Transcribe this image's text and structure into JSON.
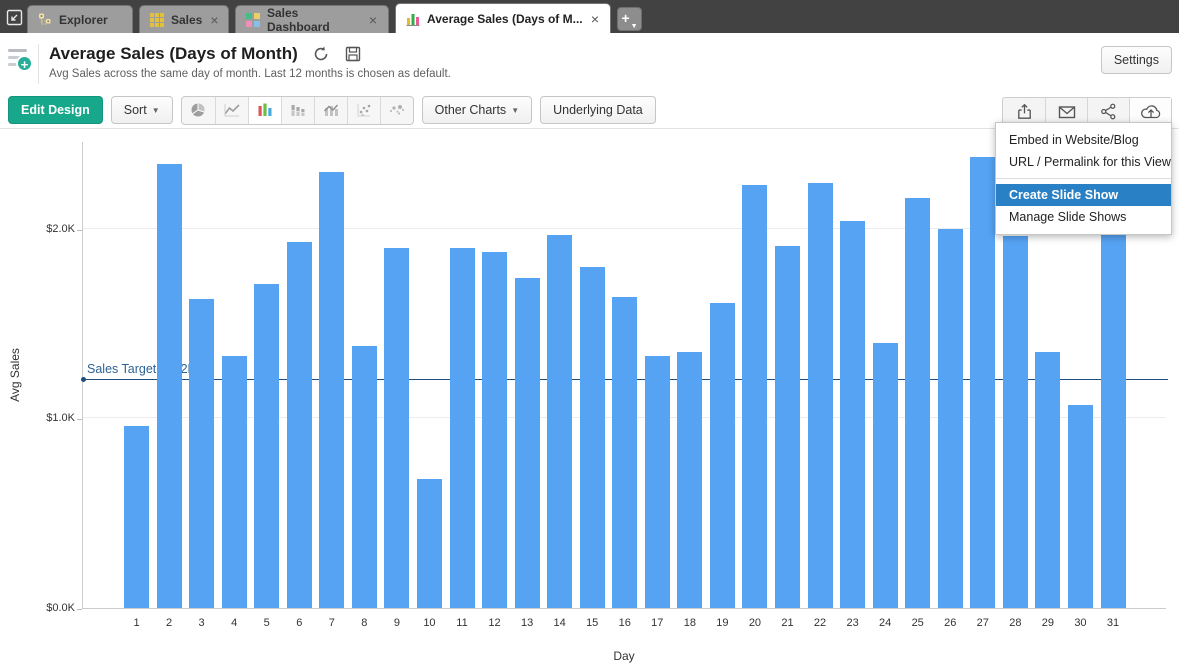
{
  "tabbar": {
    "tabs": [
      {
        "label": "Explorer",
        "icon": "explorer-tree-icon",
        "closable": false,
        "active": false
      },
      {
        "label": "Sales",
        "icon": "grid-table-icon",
        "closable": true,
        "active": false
      },
      {
        "label": "Sales Dashboard",
        "icon": "dashboard-tiles-icon",
        "closable": true,
        "active": false
      },
      {
        "label": "Average Sales (Days of M...",
        "icon": "mini-bar-chart-icon",
        "closable": true,
        "active": true
      }
    ],
    "close_glyph": "×",
    "new_tab_label": "+"
  },
  "header": {
    "title": "Average Sales (Days of Month)",
    "subtitle": "Avg Sales across the same day of month. Last 12 months is chosen as default.",
    "settings_label": "Settings",
    "icons": [
      "refresh-icon",
      "save-icon"
    ]
  },
  "toolbar": {
    "edit_design_label": "Edit Design",
    "sort_label": "Sort",
    "other_charts_label": "Other Charts",
    "underlying_data_label": "Underlying Data",
    "chart_type_icons": [
      "pie-chart-icon",
      "line-chart-icon",
      "bar-chart-icon",
      "stacked-bar-icon",
      "combo-chart-icon",
      "scatter-chart-icon",
      "bubble-chart-icon"
    ],
    "selected_chart_type": "bar-chart-icon",
    "share_icons": [
      "export-icon",
      "email-icon",
      "share-icon",
      "publish-cloud-icon"
    ]
  },
  "share_menu": {
    "items": [
      {
        "label": "Embed in Website/Blog",
        "highlighted": false
      },
      {
        "label": "URL / Permalink for this View",
        "highlighted": false
      },
      {
        "label": "Create Slide Show",
        "highlighted": true
      },
      {
        "label": "Manage Slide Shows",
        "highlighted": false
      }
    ]
  },
  "chart_data": {
    "type": "bar",
    "title": "Average Sales (Days of Month)",
    "xlabel": "Day",
    "ylabel": "Avg Sales",
    "categories": [
      1,
      2,
      3,
      4,
      5,
      6,
      7,
      8,
      9,
      10,
      11,
      12,
      13,
      14,
      15,
      16,
      17,
      18,
      19,
      20,
      21,
      22,
      23,
      24,
      25,
      26,
      27,
      28,
      29,
      30,
      31
    ],
    "values": [
      0.96,
      2.34,
      1.63,
      1.33,
      1.71,
      1.93,
      2.3,
      1.38,
      1.9,
      0.68,
      1.9,
      1.88,
      1.74,
      1.97,
      1.8,
      1.64,
      1.33,
      1.35,
      1.61,
      2.23,
      1.91,
      2.24,
      2.04,
      1.4,
      2.16,
      2.0,
      2.38,
      1.96,
      1.35,
      1.07,
      2.05
    ],
    "unit": "$K",
    "yticks": [
      "$0.0K",
      "$1.0K",
      "$2.0K"
    ],
    "ytick_values": [
      0,
      1,
      2
    ],
    "ylim": [
      0,
      2.46
    ],
    "grid": true,
    "legend": "none",
    "target": {
      "label": "Sales Target: $1.2K",
      "value": 1.2
    },
    "bar_color": "#56a3f3",
    "target_color": "#1c4e80"
  },
  "colors": {
    "accent_green": "#27ae99",
    "edit_design_green": "#17a78a",
    "bar_blue": "#56a3f3",
    "target_navy": "#1c4e80",
    "menu_highlight_blue": "#2a80c5",
    "tabbar_background": "#424242"
  }
}
